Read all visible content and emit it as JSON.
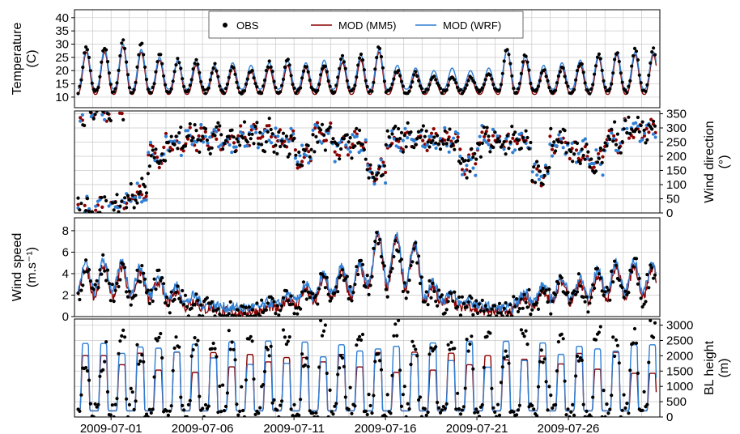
{
  "colors": {
    "obs": "#000000",
    "mm5": "#8b0000",
    "wrf": "#2f7fd4",
    "grid": "#c8c8c8"
  },
  "chart_data": {
    "type": "line",
    "x_range": [
      "2009-06-29",
      "2009-07-31"
    ],
    "x_ticks": [
      "2009-07-01",
      "2009-07-06",
      "2009-07-11",
      "2009-07-16",
      "2009-07-21",
      "2009-07-26"
    ],
    "legend": {
      "position": "top",
      "entries": [
        {
          "label": "OBS",
          "style": "points",
          "color": "#000000"
        },
        {
          "label": "MOD (MM5)",
          "style": "line",
          "color": "#8b0000"
        },
        {
          "label": "MOD (WRF)",
          "style": "line",
          "color": "#2f7fd4"
        }
      ]
    },
    "panels": [
      {
        "key": "temperature",
        "ylabel_lines": [
          "Temperature",
          "(C)"
        ],
        "ylabel_side": "left",
        "ylim": [
          6,
          43
        ],
        "yticks": [
          10,
          15,
          20,
          25,
          30,
          35,
          40
        ],
        "ytick_side": "left",
        "grid": true,
        "series": [
          {
            "name": "OBS",
            "style": "points",
            "kind": "temp",
            "base": 12,
            "amp": [
              17,
              19,
              18,
              14,
              12,
              12,
              10,
              9,
              8,
              11,
              12,
              9,
              10,
              13,
              14,
              17,
              8,
              7,
              6,
              6,
              6,
              7,
              16,
              14,
              8,
              9,
              11,
              14,
              15,
              16
            ]
          },
          {
            "name": "MOD (MM5)",
            "style": "line",
            "kind": "temp",
            "base": 11,
            "amp": [
              16,
              18,
              16,
              13,
              13,
              11,
              10,
              10,
              9,
              10,
              11,
              10,
              10,
              12,
              13,
              16,
              9,
              8,
              7,
              7,
              7,
              8,
              17,
              13,
              9,
              10,
              11,
              14,
              15,
              15
            ]
          },
          {
            "name": "MOD (WRF)",
            "style": "line",
            "kind": "temp",
            "base": 13,
            "amp": [
              15,
              17,
              15,
              12,
              11,
              11,
              9,
              10,
              9,
              10,
              11,
              10,
              11,
              12,
              13,
              15,
              9,
              8,
              7,
              8,
              7,
              8,
              15,
              13,
              9,
              10,
              11,
              13,
              14,
              14
            ]
          }
        ]
      },
      {
        "key": "wind_direction",
        "ylabel_lines": [
          "Wind direction",
          "(°)"
        ],
        "ylabel_side": "right",
        "ylim": [
          0,
          360
        ],
        "yticks": [
          0,
          50,
          100,
          150,
          200,
          250,
          300,
          350
        ],
        "ytick_side": "right",
        "grid": true,
        "series": [
          {
            "name": "OBS",
            "style": "points",
            "kind": "wdir"
          },
          {
            "name": "MOD (MM5)",
            "style": "points",
            "kind": "wdir"
          },
          {
            "name": "MOD (WRF)",
            "style": "points",
            "kind": "wdir"
          }
        ]
      },
      {
        "key": "wind_speed",
        "ylabel_lines": [
          "Wind speed",
          "(m.s⁻¹)"
        ],
        "ylabel_side": "left",
        "ylim": [
          0,
          9.2
        ],
        "yticks": [
          0,
          2,
          4,
          6,
          8
        ],
        "ytick_side": "left",
        "grid": true,
        "series": [
          {
            "name": "OBS",
            "style": "points",
            "kind": "wspd"
          },
          {
            "name": "MOD (MM5)",
            "style": "line",
            "kind": "wspd"
          },
          {
            "name": "MOD (WRF)",
            "style": "line",
            "kind": "wspd"
          }
        ]
      },
      {
        "key": "bl_height",
        "ylabel_lines": [
          "BL height",
          "(m)"
        ],
        "ylabel_side": "right",
        "ylim": [
          0,
          3200
        ],
        "yticks": [
          0,
          500,
          1000,
          1500,
          2000,
          2500,
          3000
        ],
        "ytick_side": "right",
        "grid": true,
        "series": [
          {
            "name": "OBS",
            "style": "points",
            "kind": "blh"
          },
          {
            "name": "MOD (MM5)",
            "style": "line",
            "kind": "blh"
          },
          {
            "name": "MOD (WRF)",
            "style": "line",
            "kind": "blh"
          }
        ]
      }
    ]
  }
}
